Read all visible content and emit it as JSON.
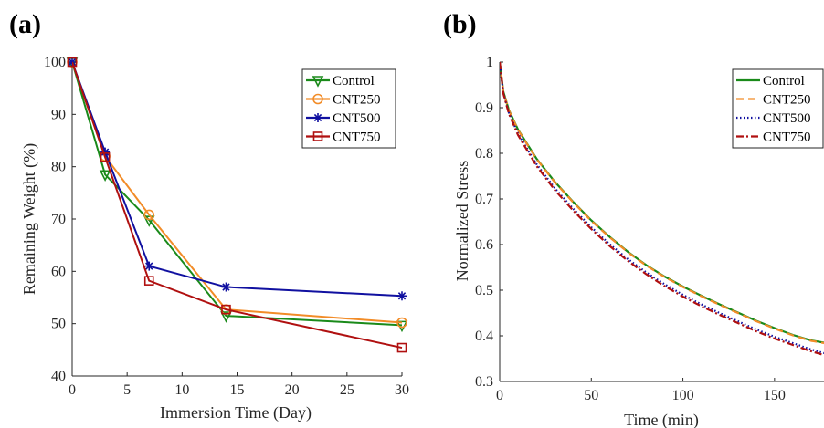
{
  "chart_data": [
    {
      "panel_label": "(a)",
      "type": "line",
      "xlabel": "Immersion Time (Day)",
      "ylabel": "Remaining Weight (%)",
      "xlim": [
        0,
        30
      ],
      "ylim": [
        40,
        100
      ],
      "xticks": [
        0,
        5,
        10,
        15,
        20,
        25,
        30
      ],
      "yticks": [
        40,
        50,
        60,
        70,
        80,
        90,
        100
      ],
      "grid": false,
      "legend_position": "top-right",
      "series": [
        {
          "name": "Control",
          "color": "#1a8a1a",
          "marker": "triangle-down",
          "x": [
            0,
            3,
            7,
            14,
            30
          ],
          "y": [
            100,
            78.5,
            69.8,
            51.5,
            49.7
          ]
        },
        {
          "name": "CNT250",
          "color": "#f28c28",
          "marker": "circle",
          "x": [
            0,
            3,
            7,
            14,
            30
          ],
          "y": [
            100,
            82,
            70.8,
            52.7,
            50.2
          ]
        },
        {
          "name": "CNT500",
          "color": "#1010a0",
          "marker": "asterisk",
          "x": [
            0,
            3,
            7,
            14,
            30
          ],
          "y": [
            100,
            82.8,
            61,
            57,
            55.3
          ]
        },
        {
          "name": "CNT750",
          "color": "#b01010",
          "marker": "square",
          "x": [
            0,
            3,
            7,
            14,
            30
          ],
          "y": [
            100,
            81.8,
            58.2,
            52.7,
            45.4
          ]
        }
      ]
    },
    {
      "panel_label": "(b)",
      "type": "line",
      "xlabel": "Time (min)",
      "ylabel": "Normalized Stress",
      "xlim": [
        0,
        177
      ],
      "ylim": [
        0.3,
        1
      ],
      "xticks": [
        0,
        50,
        100,
        150
      ],
      "yticks": [
        0.3,
        0.4,
        0.5,
        0.6,
        0.7,
        0.8,
        0.9,
        1
      ],
      "grid": false,
      "legend_position": "top-right",
      "series": [
        {
          "name": "Control",
          "color": "#1a8a1a",
          "style": "solid",
          "x": [
            0,
            2,
            5,
            10,
            20,
            30,
            40,
            50,
            60,
            70,
            80,
            90,
            100,
            110,
            120,
            130,
            140,
            150,
            160,
            170,
            177
          ],
          "y": [
            1.0,
            0.935,
            0.895,
            0.852,
            0.789,
            0.738,
            0.694,
            0.653,
            0.617,
            0.584,
            0.555,
            0.53,
            0.508,
            0.488,
            0.469,
            0.451,
            0.433,
            0.417,
            0.402,
            0.39,
            0.385
          ]
        },
        {
          "name": "CNT250",
          "color": "#f28c28",
          "style": "dashed",
          "x": [
            0,
            2,
            5,
            10,
            20,
            30,
            40,
            50,
            60,
            70,
            80,
            90,
            100,
            110,
            120,
            130,
            140,
            150,
            160,
            170,
            177
          ],
          "y": [
            1.0,
            0.934,
            0.894,
            0.851,
            0.788,
            0.737,
            0.693,
            0.652,
            0.616,
            0.583,
            0.554,
            0.529,
            0.507,
            0.487,
            0.468,
            0.45,
            0.432,
            0.416,
            0.401,
            0.389,
            0.384
          ]
        },
        {
          "name": "CNT500",
          "color": "#1010a0",
          "style": "dotted",
          "x": [
            0,
            2,
            5,
            10,
            20,
            30,
            40,
            50,
            60,
            70,
            80,
            90,
            100,
            110,
            120,
            130,
            140,
            150,
            160,
            170,
            177
          ],
          "y": [
            1.0,
            0.932,
            0.889,
            0.843,
            0.777,
            0.724,
            0.679,
            0.638,
            0.601,
            0.568,
            0.539,
            0.513,
            0.49,
            0.469,
            0.45,
            0.432,
            0.414,
            0.398,
            0.384,
            0.37,
            0.362
          ]
        },
        {
          "name": "CNT750",
          "color": "#b01010",
          "style": "dashdot",
          "x": [
            0,
            2,
            5,
            10,
            20,
            30,
            40,
            50,
            60,
            70,
            80,
            90,
            100,
            110,
            120,
            130,
            140,
            150,
            160,
            170,
            177
          ],
          "y": [
            1.0,
            0.931,
            0.887,
            0.84,
            0.773,
            0.72,
            0.675,
            0.634,
            0.597,
            0.564,
            0.535,
            0.509,
            0.486,
            0.465,
            0.446,
            0.428,
            0.41,
            0.394,
            0.38,
            0.366,
            0.358
          ]
        }
      ]
    }
  ]
}
